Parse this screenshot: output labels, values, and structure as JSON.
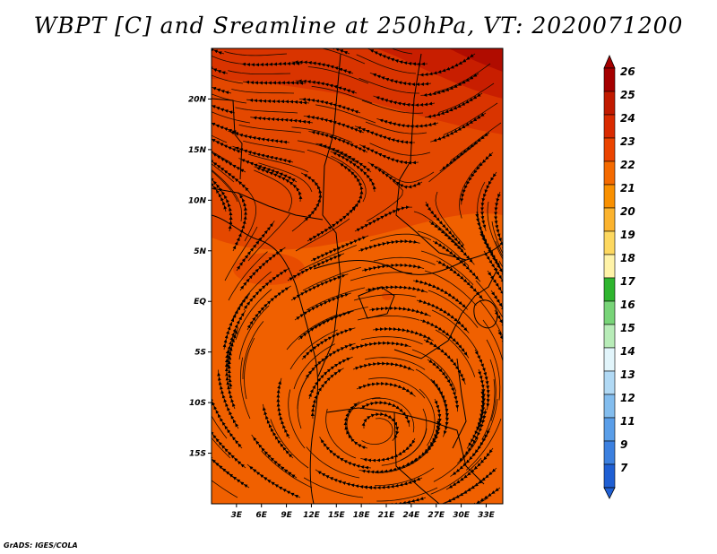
{
  "title": "WBPT [C] and Sreamline at 250hPa, VT: 2020071200",
  "credit": "GrADS: IGES/COLA",
  "map": {
    "lon_range": [
      0,
      35
    ],
    "lat_range": [
      -20,
      25
    ],
    "lat_ticks": [
      {
        "label": "20N",
        "lat": 20
      },
      {
        "label": "15N",
        "lat": 15
      },
      {
        "label": "10N",
        "lat": 10
      },
      {
        "label": "5N",
        "lat": 5
      },
      {
        "label": "EQ",
        "lat": 0
      },
      {
        "label": "5S",
        "lat": -5
      },
      {
        "label": "10S",
        "lat": -10
      },
      {
        "label": "15S",
        "lat": -15
      }
    ],
    "lon_ticks": [
      {
        "label": "3E",
        "lon": 3
      },
      {
        "label": "6E",
        "lon": 6
      },
      {
        "label": "9E",
        "lon": 9
      },
      {
        "label": "12E",
        "lon": 12
      },
      {
        "label": "15E",
        "lon": 15
      },
      {
        "label": "18E",
        "lon": 18
      },
      {
        "label": "21E",
        "lon": 21
      },
      {
        "label": "24E",
        "lon": 24
      },
      {
        "label": "27E",
        "lon": 27
      },
      {
        "label": "30E",
        "lon": 30
      },
      {
        "label": "33E",
        "lon": 33
      }
    ]
  },
  "colorbar": {
    "labels": [
      "26",
      "25",
      "24",
      "23",
      "22",
      "21",
      "20",
      "19",
      "18",
      "17",
      "16",
      "15",
      "14",
      "13",
      "12",
      "11",
      "9",
      "7"
    ],
    "colors": [
      "#a50000",
      "#c11a00",
      "#d92a00",
      "#eb4400",
      "#f46a00",
      "#f99000",
      "#fbb32e",
      "#fdd860",
      "#fff3a8",
      "#2fb52f",
      "#78d478",
      "#b8ecb8",
      "#e2f5fb",
      "#b1d9f4",
      "#83bdee",
      "#5a9ee8",
      "#3c80df",
      "#1f5fd3"
    ]
  }
}
